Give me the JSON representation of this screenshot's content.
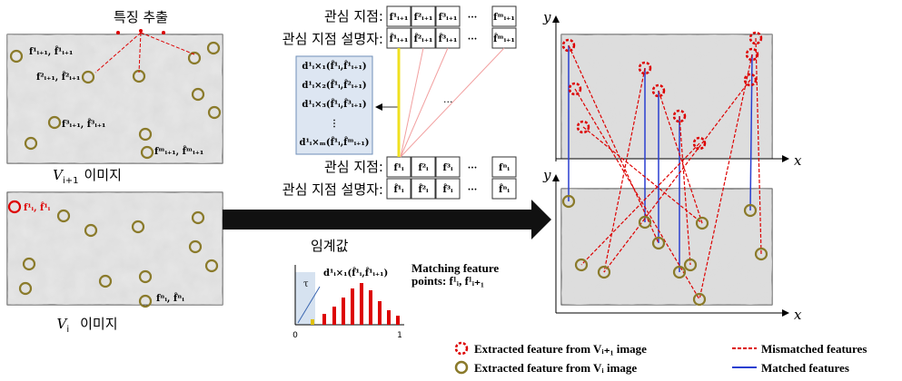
{
  "left": {
    "extract_label": "특징 추출",
    "top_image": {
      "labels": [
        "f¹ᵢ₊₁, f̂¹ᵢ₊₁",
        "f²ᵢ₊₁, f̂²ᵢ₊₁",
        "f³ᵢ₊₁, f̂³ᵢ₊₁",
        "fᵐᵢ₊₁, f̂ᵐᵢ₊₁"
      ],
      "caption_var": "V",
      "caption_sub": "i+1",
      "caption_text": "이미지"
    },
    "bottom_image": {
      "labels": [
        "f¹ᵢ, f̂¹ᵢ",
        "fⁿᵢ, f̂ⁿᵢ"
      ],
      "caption_var": "V",
      "caption_sub": "i",
      "caption_text": "이미지"
    }
  },
  "middle": {
    "top": {
      "points_label": "관심 지점:",
      "descriptors_label": "관심 지점 설명자:",
      "points": [
        "f¹ᵢ₊₁",
        "f²ᵢ₊₁",
        "f³ᵢ₊₁",
        "···",
        "fᵐᵢ₊₁"
      ],
      "descriptors": [
        "f̂¹ᵢ₊₁",
        "f̂²ᵢ₊₁",
        "f̂³ᵢ₊₁",
        "···",
        "f̂ᵐᵢ₊₁"
      ]
    },
    "bottom": {
      "points_label": "관심 지점:",
      "descriptors_label": "관심 지점 설명자:",
      "points": [
        "f¹ᵢ",
        "f²ᵢ",
        "f³ᵢ",
        "···",
        "fⁿᵢ"
      ],
      "descriptors": [
        "f̂¹ᵢ",
        "f̂²ᵢ",
        "f̂³ᵢ",
        "···",
        "f̂ⁿᵢ"
      ]
    },
    "distances": [
      "d¹ᵢ×₁(f̂¹ᵢ,f̂¹ᵢ₊₁)",
      "d¹ᵢ×₂(f̂¹ᵢ,f̂²ᵢ₊₁)",
      "d¹ᵢ×₃(f̂¹ᵢ,f̂³ᵢ₊₁)",
      "⋮",
      "d¹ᵢ×ₘ(f̂¹ᵢ,f̂ᵐᵢ₊₁)"
    ],
    "ellipsis": "···",
    "threshold_label": "임계값",
    "histogram": {
      "tau": "τ",
      "peak_label": "d¹ᵢ×₁(f̂¹ᵢ,f̂¹ᵢ₊₁)",
      "x_start": "0",
      "x_end": "1"
    },
    "matching_label": [
      "Matching feature",
      "points: f¹ᵢ, f¹ᵢ₊₁"
    ]
  },
  "right": {
    "top_x": "x",
    "top_y": "y",
    "bottom_x": "x",
    "bottom_y": "y"
  },
  "legend": [
    "Extracted feature from Vᵢ₊₁ image",
    "Extracted feature from Vᵢ  image",
    "Mismatched features",
    "Matched features"
  ]
}
